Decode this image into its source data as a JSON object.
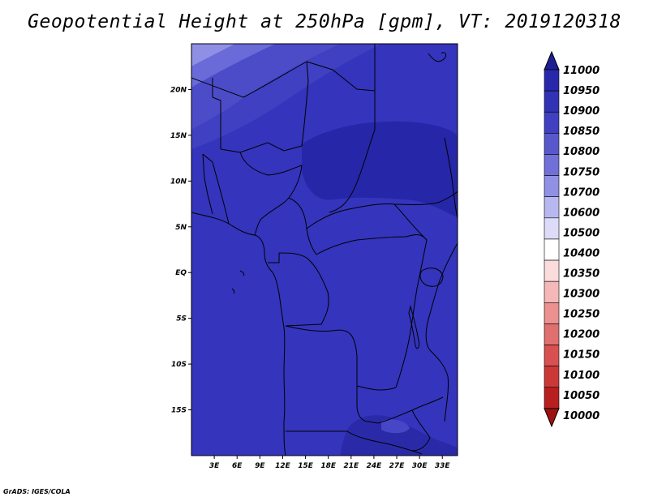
{
  "title": "Geopotential Height at 250hPa [gpm], VT: 2019120318",
  "footer": "GrADS: IGES/COLA",
  "map": {
    "lon_range": [
      0,
      35
    ],
    "lat_range": [
      -20,
      25
    ],
    "lat_ticks": [
      {
        "label": "20N",
        "lat": 20
      },
      {
        "label": "15N",
        "lat": 15
      },
      {
        "label": "10N",
        "lat": 10
      },
      {
        "label": "5N",
        "lat": 5
      },
      {
        "label": "EQ",
        "lat": 0
      },
      {
        "label": "5S",
        "lat": -5
      },
      {
        "label": "10S",
        "lat": -10
      },
      {
        "label": "15S",
        "lat": -15
      }
    ],
    "lon_ticks": [
      {
        "label": "3E",
        "lon": 3
      },
      {
        "label": "6E",
        "lon": 6
      },
      {
        "label": "9E",
        "lon": 9
      },
      {
        "label": "12E",
        "lon": 12
      },
      {
        "label": "15E",
        "lon": 15
      },
      {
        "label": "18E",
        "lon": 18
      },
      {
        "label": "21E",
        "lon": 21
      },
      {
        "label": "24E",
        "lon": 24
      },
      {
        "label": "27E",
        "lon": 27
      },
      {
        "label": "30E",
        "lon": 30
      },
      {
        "label": "33E",
        "lon": 33
      }
    ],
    "background_color": "#3030b8"
  },
  "colorbar": {
    "levels": [
      "11000",
      "10950",
      "10900",
      "10850",
      "10800",
      "10750",
      "10700",
      "10600",
      "10500",
      "10400",
      "10350",
      "10300",
      "10250",
      "10200",
      "10150",
      "10100",
      "10050",
      "10000"
    ],
    "colors": [
      "#1e1e96",
      "#2828aa",
      "#3232b4",
      "#4040c0",
      "#5858cc",
      "#7070d8",
      "#9090e4",
      "#b8b8f0",
      "#dcdcf8",
      "#ffffff",
      "#fadcdc",
      "#f4b8b8",
      "#ec9090",
      "#e07070",
      "#d85050",
      "#cc3838",
      "#b82020",
      "#a01010"
    ]
  }
}
